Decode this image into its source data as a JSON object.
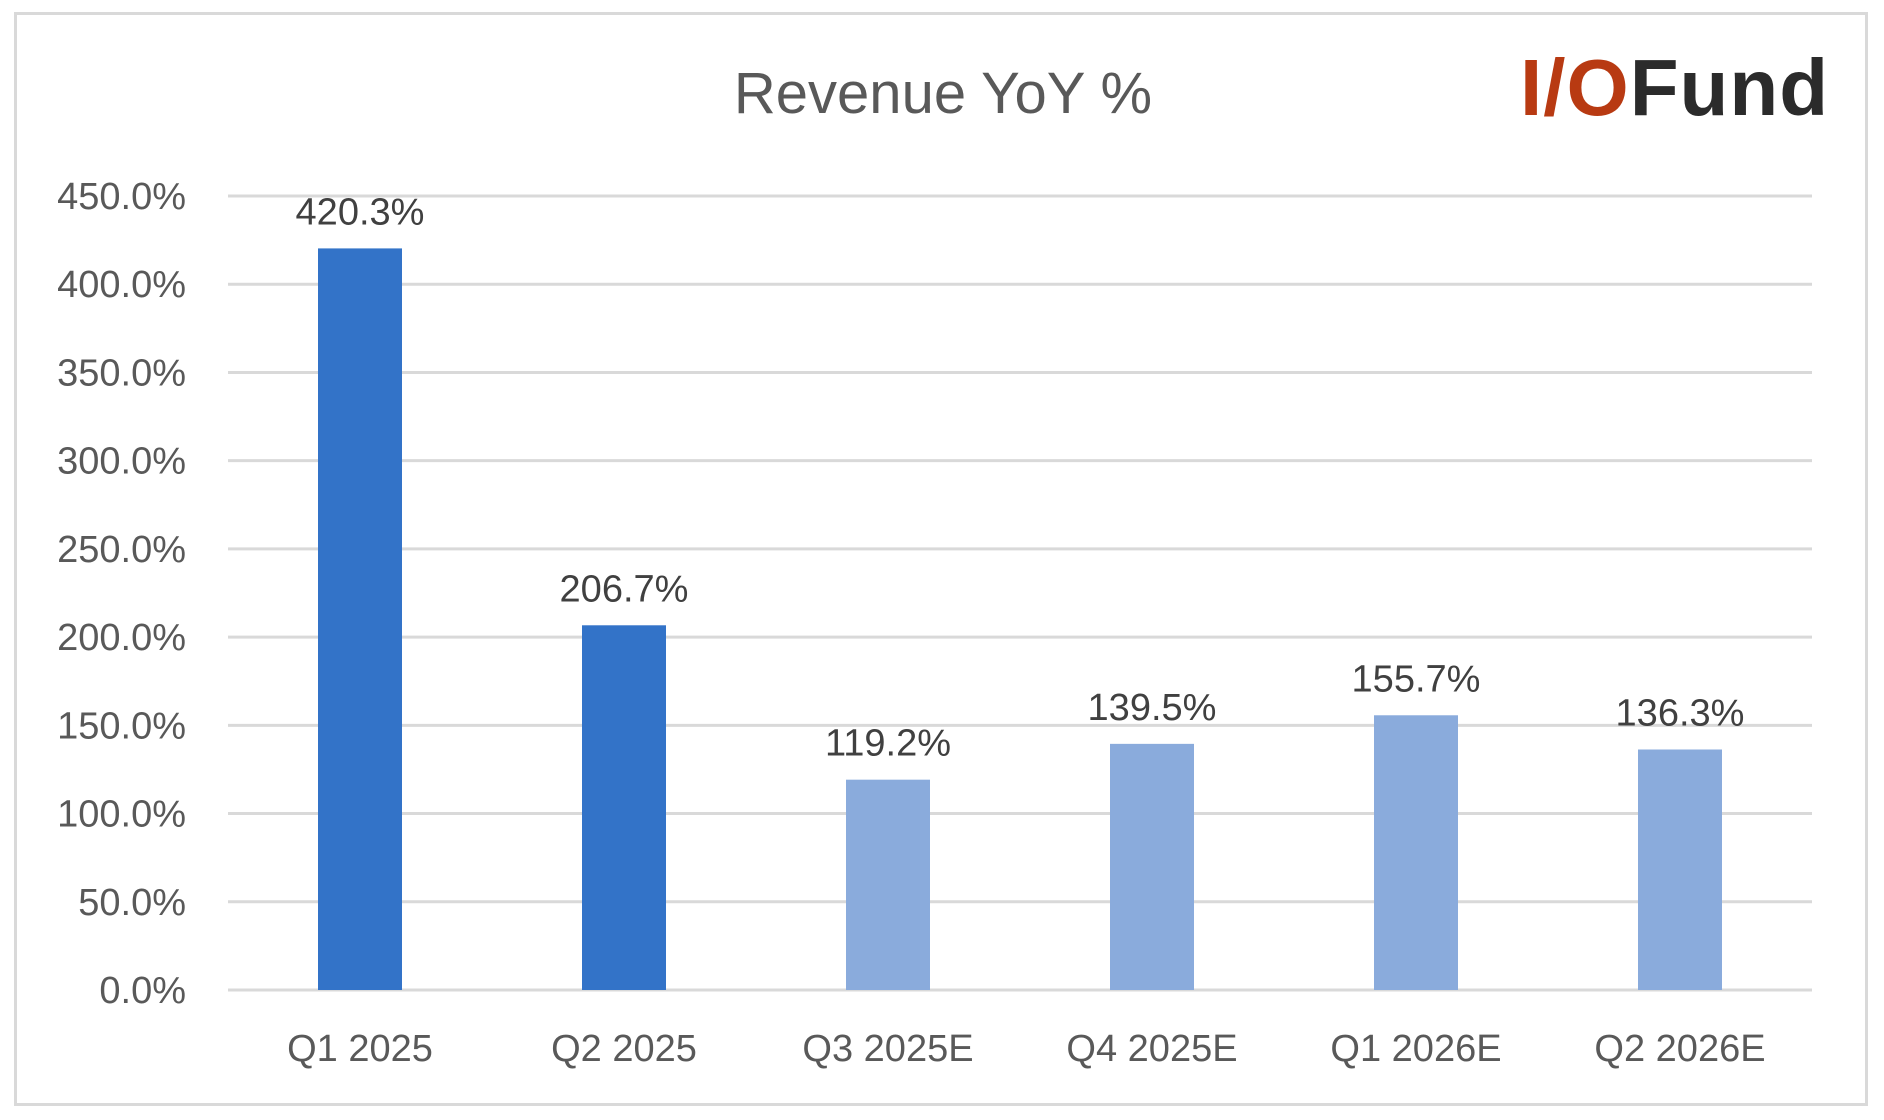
{
  "chart_data": {
    "type": "bar",
    "title": "Revenue YoY %",
    "categories": [
      "Q1 2025",
      "Q2 2025",
      "Q3 2025E",
      "Q4 2025E",
      "Q1 2026E",
      "Q2 2026E"
    ],
    "values": [
      420.3,
      206.7,
      119.2,
      139.5,
      155.7,
      136.3
    ],
    "data_labels": [
      "420.3%",
      "206.7%",
      "119.2%",
      "139.5%",
      "155.7%",
      "136.3%"
    ],
    "y_ticks": [
      "0.0%",
      "50.0%",
      "100.0%",
      "150.0%",
      "200.0%",
      "250.0%",
      "300.0%",
      "350.0%",
      "400.0%",
      "450.0%"
    ],
    "ylim": [
      0,
      450
    ],
    "xlabel": "",
    "ylabel": "",
    "grid": true,
    "legend": "none",
    "bar_colors": [
      "#3373c8",
      "#3373c8",
      "#8aabdc",
      "#8aabdc",
      "#8aabdc",
      "#8aabdc"
    ],
    "gridline_color": "#d9d9d9"
  },
  "logo": {
    "part_accent": "I/O",
    "part_dark": "Fund",
    "accent_color": "#b83a12",
    "dark_color": "#2b2b2b"
  }
}
